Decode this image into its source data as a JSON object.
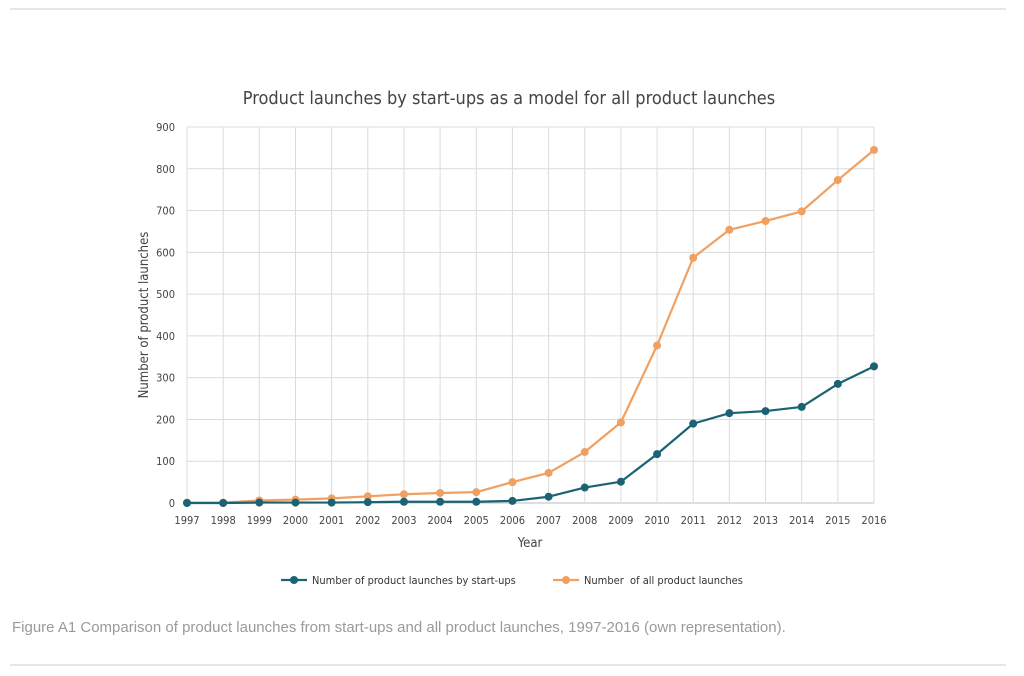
{
  "chart_data": {
    "type": "line",
    "title": "Product launches by start-ups as a model for all product launches",
    "xlabel": "Year",
    "ylabel": "Number of product launches",
    "ylim": [
      0,
      900
    ],
    "yticks": [
      0,
      100,
      200,
      300,
      400,
      500,
      600,
      700,
      800,
      900
    ],
    "grid": true,
    "legend_position": "bottom",
    "categories": [
      "1997",
      "1998",
      "1999",
      "2000",
      "2001",
      "2002",
      "2003",
      "2004",
      "2005",
      "2006",
      "2007",
      "2008",
      "2009",
      "2010",
      "2011",
      "2012",
      "2013",
      "2014",
      "2015",
      "2016"
    ],
    "series": [
      {
        "name": "Number of product launches by start-ups",
        "color": "#1c6275",
        "values": [
          0,
          0,
          1,
          1,
          1,
          2,
          3,
          3,
          3,
          5,
          15,
          37,
          51,
          117,
          190,
          215,
          220,
          230,
          285,
          327
        ]
      },
      {
        "name": "Number  of all product launches",
        "color": "#f0a060",
        "values": [
          1,
          1,
          6,
          8,
          11,
          16,
          21,
          24,
          26,
          50,
          72,
          122,
          193,
          377,
          587,
          654,
          675,
          698,
          773,
          845
        ]
      }
    ]
  },
  "caption": "Figure A1 Comparison of product launches from start-ups and all product launches, 1997-2016 (own representation)."
}
